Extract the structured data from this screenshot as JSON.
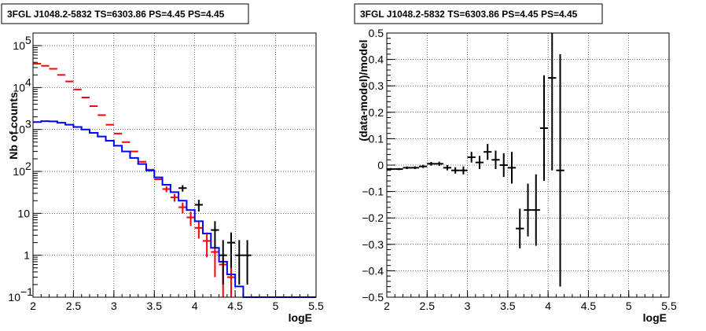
{
  "chart_data": [
    {
      "type": "line",
      "title": "3FGL J1048.2-5832 TS=6303.86 PS=4.45 PS=4.45",
      "xlabel": "logE",
      "ylabel": "Nb of counts",
      "xlim": [
        2,
        5.5
      ],
      "ylim": [
        0.1,
        200000
      ],
      "yscale": "log",
      "grid": true,
      "xticks": [
        "2",
        "2.5",
        "3",
        "3.5",
        "4",
        "4.5",
        "5",
        "5.5"
      ],
      "yticks": [
        {
          "value": 0.1,
          "label": "10",
          "exp": "−1"
        },
        {
          "value": 1,
          "label": "1",
          "exp": ""
        },
        {
          "value": 10,
          "label": "10",
          "exp": ""
        },
        {
          "value": 100,
          "label": "10",
          "exp": "2"
        },
        {
          "value": 1000,
          "label": "10",
          "exp": "3"
        },
        {
          "value": 10000,
          "label": "10",
          "exp": "4"
        },
        {
          "value": 100000,
          "label": "10",
          "exp": "5"
        }
      ],
      "colors": {
        "model_total": "#ff0000",
        "model_source": "#0000ff",
        "data": "#000000"
      },
      "bin_edges": [
        2.0,
        2.1,
        2.2,
        2.3,
        2.4,
        2.5,
        2.6,
        2.7,
        2.8,
        2.9,
        3.0,
        3.1,
        3.2,
        3.3,
        3.4,
        3.5,
        3.6,
        3.7,
        3.8,
        3.9,
        4.0,
        4.1,
        4.2,
        4.3,
        4.4,
        4.5,
        4.6,
        4.7,
        4.8,
        4.9,
        5.0,
        5.1,
        5.2,
        5.3,
        5.4,
        5.5
      ],
      "series": [
        {
          "style": "red-horizontal-bin-markers",
          "x": [
            2.05,
            2.15,
            2.25,
            2.35,
            2.45,
            2.55,
            2.65,
            2.75,
            2.85,
            2.95,
            3.05,
            3.15,
            3.25,
            3.35,
            3.45,
            3.55,
            3.65,
            3.75,
            3.85,
            3.95,
            4.05,
            4.15,
            4.25,
            4.35,
            4.45
          ],
          "values": [
            37000,
            33000,
            28000,
            20000,
            14000,
            9000,
            5800,
            3600,
            2200,
            1300,
            800,
            500,
            300,
            170,
            110,
            65,
            38,
            24,
            14,
            8,
            4.5,
            2.2,
            1.2,
            0.6,
            0.3
          ],
          "errors": [
            0,
            0,
            0,
            0,
            0,
            0,
            0,
            0,
            0,
            0,
            0,
            0,
            0,
            0,
            0,
            0,
            6,
            5,
            4,
            3,
            2,
            1.3,
            0.9,
            0.5,
            0.25
          ]
        },
        {
          "style": "blue-step",
          "values": [
            1500,
            1580,
            1560,
            1450,
            1300,
            1150,
            1000,
            830,
            680,
            540,
            410,
            300,
            210,
            150,
            105,
            72,
            48,
            32,
            20,
            12,
            6.5,
            3.3,
            1.5,
            0.7,
            0.35,
            0.18,
            0.1,
            0.1,
            0.1,
            0.1,
            0.1,
            0.1,
            0.1,
            0.1,
            0.1
          ]
        },
        {
          "style": "black-data-crosses",
          "x": [
            3.85,
            4.05,
            4.25,
            4.35,
            4.45,
            4.55,
            4.65
          ],
          "values": [
            40,
            16,
            4,
            1,
            2,
            1,
            1
          ],
          "err_low": [
            7,
            5,
            2.5,
            0.8,
            1.5,
            0.8,
            0.8
          ],
          "err_high": [
            7,
            5,
            2.5,
            1.3,
            1.5,
            1.3,
            1.3
          ]
        }
      ]
    },
    {
      "type": "scatter",
      "title": "3FGL J1048.2-5832 TS=6303.86 PS=4.45 PS=4.45",
      "xlabel": "logE",
      "ylabel": "(data-model)/model",
      "xlim": [
        2,
        5.5
      ],
      "ylim": [
        -0.5,
        0.5
      ],
      "grid": true,
      "xticks": [
        "2",
        "2.5",
        "3",
        "3.5",
        "4",
        "4.5",
        "5",
        "5.5"
      ],
      "yticks": [
        "−0.5",
        "−0.4",
        "−0.3",
        "−0.2",
        "−0.1",
        "0",
        "0.1",
        "0.2",
        "0.3",
        "0.4",
        "0.5"
      ],
      "series": [
        {
          "x": [
            2.05,
            2.15,
            2.25,
            2.35,
            2.45,
            2.55,
            2.65,
            2.75,
            2.85,
            2.95,
            3.05,
            3.15,
            3.25,
            3.35,
            3.45,
            3.55,
            3.65,
            3.75,
            3.85,
            3.95,
            4.05,
            4.15
          ],
          "y": [
            -0.015,
            -0.015,
            -0.01,
            -0.01,
            -0.005,
            0.005,
            0.005,
            -0.01,
            -0.02,
            -0.02,
            0.03,
            0.01,
            0.05,
            0.02,
            0.0,
            -0.01,
            -0.24,
            -0.17,
            -0.17,
            0.14,
            0.33,
            -0.02
          ],
          "err": [
            0.004,
            0.004,
            0.005,
            0.005,
            0.006,
            0.007,
            0.008,
            0.01,
            0.012,
            0.015,
            0.02,
            0.025,
            0.03,
            0.035,
            0.045,
            0.06,
            0.075,
            0.1,
            0.135,
            0.2,
            0.35,
            0.44
          ]
        }
      ]
    }
  ]
}
